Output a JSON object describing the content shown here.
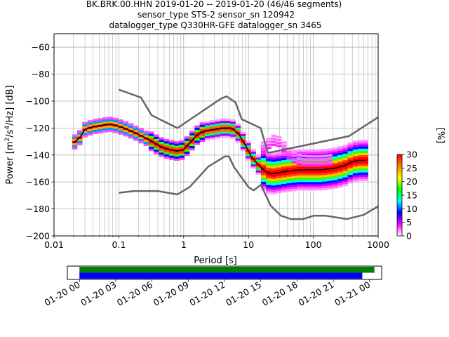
{
  "chart_data": [
    {
      "type": "heatmap",
      "title_lines": [
        "BK.BRK.00.HHN   2019-01-20 -- 2019-01-20  (46/46 segments)",
        "sensor_type STS-2 sensor_sn 120942",
        "datalogger_type Q330HR-GFE datalogger_sn 3465"
      ],
      "xlabel": "Period [s]",
      "ylabel": "Power [m²/s⁴/Hz] [dB]",
      "xscale": "log",
      "xlim": [
        0.01,
        1000
      ],
      "ylim": [
        -200,
        -50
      ],
      "xticks": [
        {
          "value": 0.01,
          "label": "0.01"
        },
        {
          "value": 0.1,
          "label": "0.1"
        },
        {
          "value": 1,
          "label": "1"
        },
        {
          "value": 10,
          "label": "10"
        },
        {
          "value": 100,
          "label": "100"
        },
        {
          "value": 1000,
          "label": "1000"
        }
      ],
      "yticks": [
        {
          "value": -60,
          "label": "−60"
        },
        {
          "value": -80,
          "label": "−80"
        },
        {
          "value": -100,
          "label": "−100"
        },
        {
          "value": -120,
          "label": "−120"
        },
        {
          "value": -140,
          "label": "−140"
        },
        {
          "value": -160,
          "label": "−160"
        },
        {
          "value": -180,
          "label": "−180"
        },
        {
          "value": -200,
          "label": "−200"
        }
      ],
      "grid": true,
      "noise_models": {
        "color": "#666666",
        "high": {
          "x": [
            0.1,
            0.22,
            0.32,
            0.8,
            3.8,
            4.6,
            6.3,
            7.9,
            15.4,
            20,
            354.8,
            1000
          ],
          "y": [
            -91.5,
            -97.4,
            -110.5,
            -120,
            -98,
            -96.5,
            -101,
            -113.5,
            -120,
            -138.5,
            -126,
            -112
          ]
        },
        "low": {
          "x": [
            0.1,
            0.17,
            0.4,
            0.8,
            1.24,
            2.4,
            4.3,
            5.0,
            6.0,
            10.0,
            12.0,
            15.6,
            21.9,
            31.6,
            45,
            70,
            101,
            154,
            328,
            600,
            1000
          ],
          "y": [
            -168,
            -166.7,
            -166.7,
            -169.2,
            -163.7,
            -148.6,
            -141.1,
            -141.1,
            -149,
            -163.8,
            -166.2,
            -162.1,
            -177.5,
            -185,
            -187.5,
            -187.5,
            -185,
            -185,
            -187.5,
            -184.4,
            -178
          ]
        }
      },
      "mean": {
        "color": "#000000",
        "x": [
          0.02,
          0.025,
          0.03,
          0.04,
          0.055,
          0.07,
          0.09,
          0.12,
          0.17,
          0.25,
          0.35,
          0.45,
          0.6,
          0.8,
          1.0,
          1.3,
          1.7,
          2.2,
          3,
          4,
          5.5,
          7,
          9,
          11,
          14,
          18,
          22,
          30,
          40,
          60,
          90,
          130,
          200,
          300,
          400,
          500,
          650
        ],
        "y": [
          -131,
          -127,
          -121,
          -119,
          -118,
          -117,
          -118,
          -120,
          -123,
          -127,
          -131,
          -134,
          -136,
          -137,
          -136,
          -130,
          -124,
          -122,
          -121,
          -120,
          -120,
          -124,
          -133,
          -141,
          -147,
          -152,
          -154,
          -153,
          -152,
          -151,
          -151,
          -151,
          -150,
          -148,
          -145,
          -144,
          -144
        ]
      },
      "colorbar": {
        "label": "[%]",
        "min": 0,
        "max": 30,
        "ticks": [
          0,
          5,
          10,
          15,
          20,
          25,
          30
        ],
        "colors": [
          "#ffffff",
          "#ff00ff",
          "#0000ff",
          "#00ffff",
          "#00ff00",
          "#ffff00",
          "#ff8000",
          "#ff0000"
        ]
      }
    },
    {
      "type": "timeline",
      "xlim": [
        "2019-01-19 23:00",
        "2019-01-21 01:00"
      ],
      "xtick_labels": [
        "01-20 00",
        "01-20 03",
        "01-20 06",
        "01-20 09",
        "01-20 12",
        "01-20 15",
        "01-20 18",
        "01-20 21",
        "01-21 00"
      ],
      "xtick_hours": [
        0,
        3,
        6,
        9,
        12,
        15,
        18,
        21,
        24
      ],
      "bars": [
        {
          "color": "#008000",
          "start_hour": 0,
          "end_hour": 24.4
        },
        {
          "color": "#0000ff",
          "start_hour": 0,
          "end_hour": 23.4
        }
      ]
    }
  ]
}
